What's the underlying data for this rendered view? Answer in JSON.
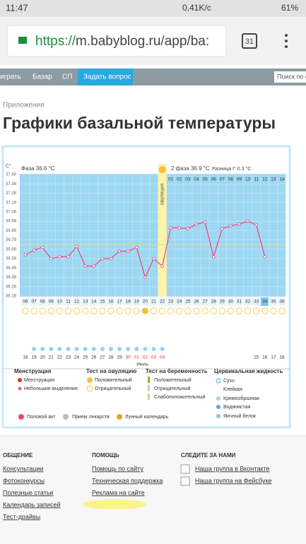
{
  "status": {
    "time": "11:47",
    "speed": "0,41K/c",
    "battery": "61%"
  },
  "browser": {
    "url_scheme": "https://",
    "url_rest": "m.babyblog.ru/app/ba:",
    "tabs": "31"
  },
  "nav": {
    "items": [
      "играть",
      "Базар",
      "СП",
      "Задать вопрос"
    ],
    "search": "Поиск по с"
  },
  "breadcrumb": "Приложения",
  "title": "Графики базальной температуры",
  "chart_data": {
    "type": "line",
    "y_unit": "C°",
    "phase1": "Фаза 36.6 °С",
    "ovulation": "овуляция",
    "phase2": "2 фаза 36.9 °С",
    "difference": "Разница t° 0.3 °С",
    "categories": [
      "06",
      "07",
      "08",
      "09",
      "10",
      "11",
      "12",
      "13",
      "14",
      "15",
      "16",
      "17",
      "18",
      "19",
      "20",
      "21",
      "22",
      "23",
      "24",
      "25",
      "26",
      "27",
      "28",
      "29",
      "30",
      "31",
      "32",
      "33",
      "34",
      "35",
      "36"
    ],
    "phase2_days": [
      "01",
      "02",
      "03",
      "04",
      "05",
      "06",
      "07",
      "08",
      "09",
      "10",
      "11",
      "12",
      "13",
      "14"
    ],
    "dates": [
      "18",
      "19",
      "20",
      "21",
      "22",
      "23",
      "24",
      "25",
      "26",
      "27",
      "28",
      "29",
      "30",
      "01",
      "02",
      "03",
      "04",
      null,
      null,
      null,
      null,
      null,
      null,
      null,
      null,
      null,
      null,
      "15",
      "16",
      "17",
      "18"
    ],
    "month": "Июль",
    "series": [
      {
        "color": "#e8457d",
        "values": [
          36.62,
          36.67,
          36.7,
          36.58,
          36.6,
          36.6,
          36.71,
          36.5,
          36.5,
          36.58,
          36.58,
          36.66,
          36.66,
          36.7,
          36.38,
          36.58,
          36.5,
          36.91,
          36.91,
          36.9,
          36.95,
          36.97,
          36.6,
          36.9,
          36.93,
          36.95,
          36.98,
          36.94,
          36.6,
          null,
          null
        ]
      }
    ],
    "coverline": 36.73,
    "ylim": [
      36.18,
      37.48
    ],
    "yticks": [
      36.18,
      36.28,
      36.38,
      36.48,
      36.58,
      36.68,
      36.78,
      36.88,
      36.98,
      37.08,
      37.18,
      37.28,
      37.38,
      37.48
    ]
  },
  "legend": {
    "menstruation": {
      "title": "Менструация",
      "items": [
        "Менструация",
        "Небольшие выделения"
      ]
    },
    "ovulation_test": {
      "title": "Тест на овуляцию",
      "items": [
        "Положительный",
        "Отрицательный"
      ]
    },
    "pregnancy_test": {
      "title": "Тест на беременность",
      "items": [
        "Положительный",
        "Отрицательный",
        "Слабоположительный"
      ]
    },
    "cervical": {
      "title": "Цервикальная жидкость",
      "items": [
        "Сухо",
        "Клейкая",
        "Кремообразная",
        "Водянистая",
        "Яичный белок"
      ]
    },
    "bottom": [
      "Половой акт",
      "Прием лекарств",
      "Лунный календарь"
    ]
  },
  "footer": {
    "columns": [
      {
        "title": "ОБЩЕНИЕ",
        "links": [
          "Консультации",
          "Фотоконкурсы",
          "Полезные статьи",
          "Календарь записей",
          "Тест-драйвы"
        ]
      },
      {
        "title": "ПОМОЩЬ",
        "links": [
          "Помощь по сайту",
          "Техническая поддержка",
          "Реклама на сайте"
        ]
      },
      {
        "title": "СЛЕДИТЕ ЗА НАМИ",
        "links": [
          "Наша группа в Вконтакте",
          "Наша группа на Фейсбуке"
        ]
      }
    ]
  }
}
